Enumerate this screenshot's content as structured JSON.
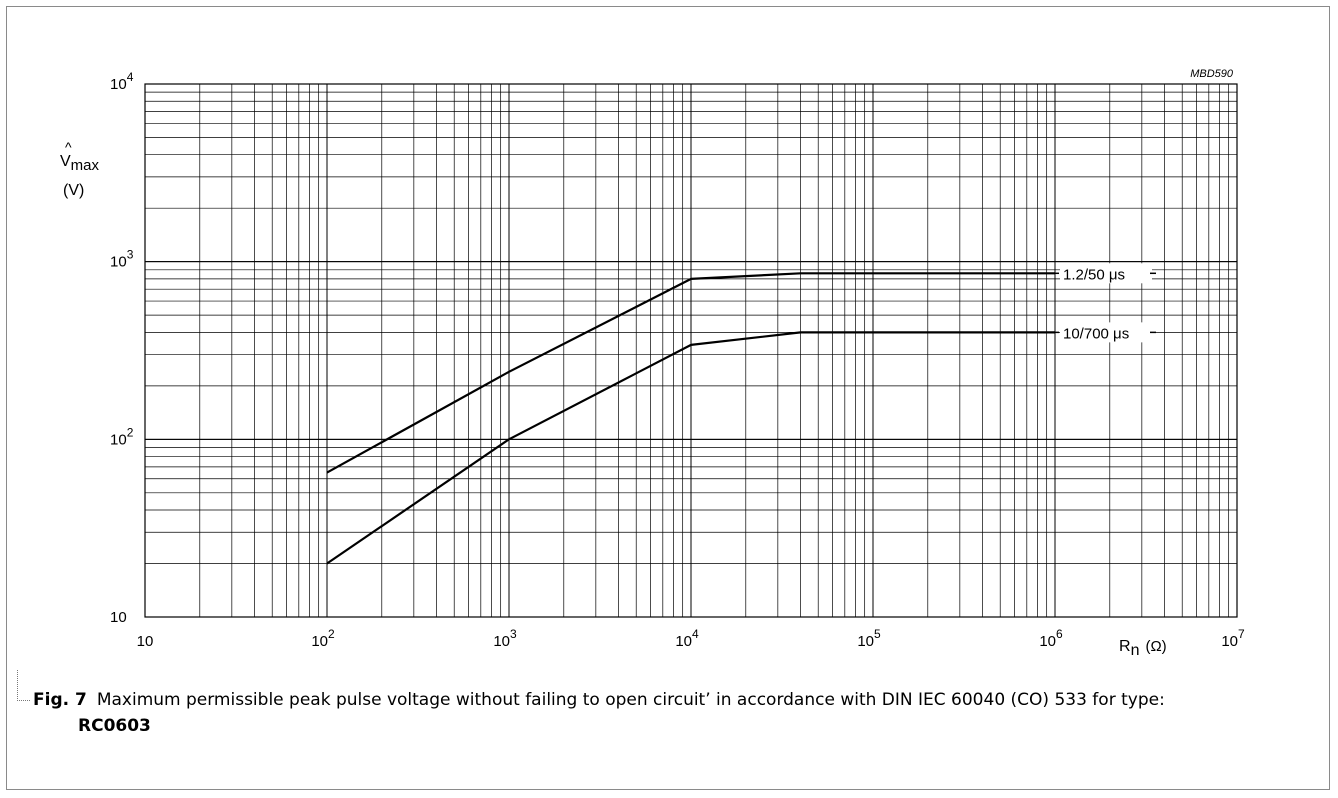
{
  "chart_data": {
    "type": "line",
    "code": "MBD590",
    "xscale": "log",
    "yscale": "log",
    "xlim": [
      10,
      10000000
    ],
    "ylim": [
      10,
      10000
    ],
    "xticks": [
      {
        "base": "10",
        "exp": ""
      },
      {
        "base": "10",
        "exp": "2"
      },
      {
        "base": "10",
        "exp": "3"
      },
      {
        "base": "10",
        "exp": "4"
      },
      {
        "base": "10",
        "exp": "5"
      },
      {
        "base": "10",
        "exp": "6"
      },
      {
        "base": "10",
        "exp": "7"
      }
    ],
    "yticks": [
      {
        "base": "10",
        "exp": ""
      },
      {
        "base": "10",
        "exp": "2"
      },
      {
        "base": "10",
        "exp": "3"
      },
      {
        "base": "10",
        "exp": "4"
      }
    ],
    "ylabel": {
      "symbol": "V",
      "hat": "^",
      "sub": "max",
      "unit": "(V)"
    },
    "xlabel": {
      "symbol": "R",
      "sub": "n",
      "unit": "(Ω)"
    },
    "grid": true,
    "series": [
      {
        "name": "1.2/50 μs",
        "x": [
          100,
          1000,
          10000,
          40000,
          1000000
        ],
        "y": [
          65,
          240,
          800,
          860,
          860
        ]
      },
      {
        "name": "10/700 μs",
        "x": [
          100,
          1000,
          10000,
          40000,
          1000000
        ],
        "y": [
          20,
          100,
          340,
          400,
          400
        ]
      }
    ]
  },
  "caption": {
    "label": "Fig. 7",
    "text": "Maximum permissible peak pulse voltage without failing to open circuit’ in accordance with DIN IEC 60040 (CO) 533 for type:",
    "type_name": "RC0603"
  }
}
